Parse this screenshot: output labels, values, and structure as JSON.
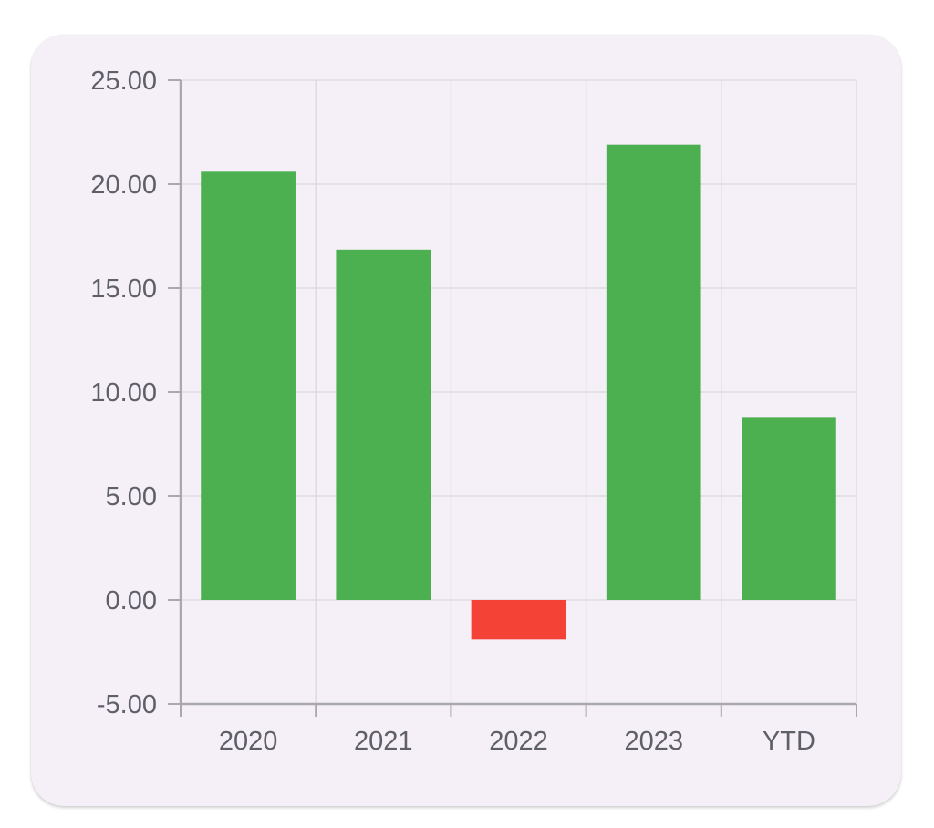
{
  "chart_data": {
    "type": "bar",
    "title": "",
    "xlabel": "",
    "ylabel": "",
    "categories": [
      "2020",
      "2021",
      "2022",
      "2023",
      "YTD"
    ],
    "values": [
      20.6,
      16.85,
      -1.9,
      21.9,
      8.8
    ],
    "ylim": [
      -5,
      25
    ],
    "yticks": [
      "-5.00",
      "0.00",
      "5.00",
      "10.00",
      "15.00",
      "20.00",
      "25.00"
    ],
    "grid": true,
    "legend": "none",
    "colors": {
      "positive": "#4caf50",
      "negative": "#f44336",
      "grid": "#dcdcde",
      "axis": "#a8a8ad",
      "card_background": "#f5f0f8"
    }
  }
}
